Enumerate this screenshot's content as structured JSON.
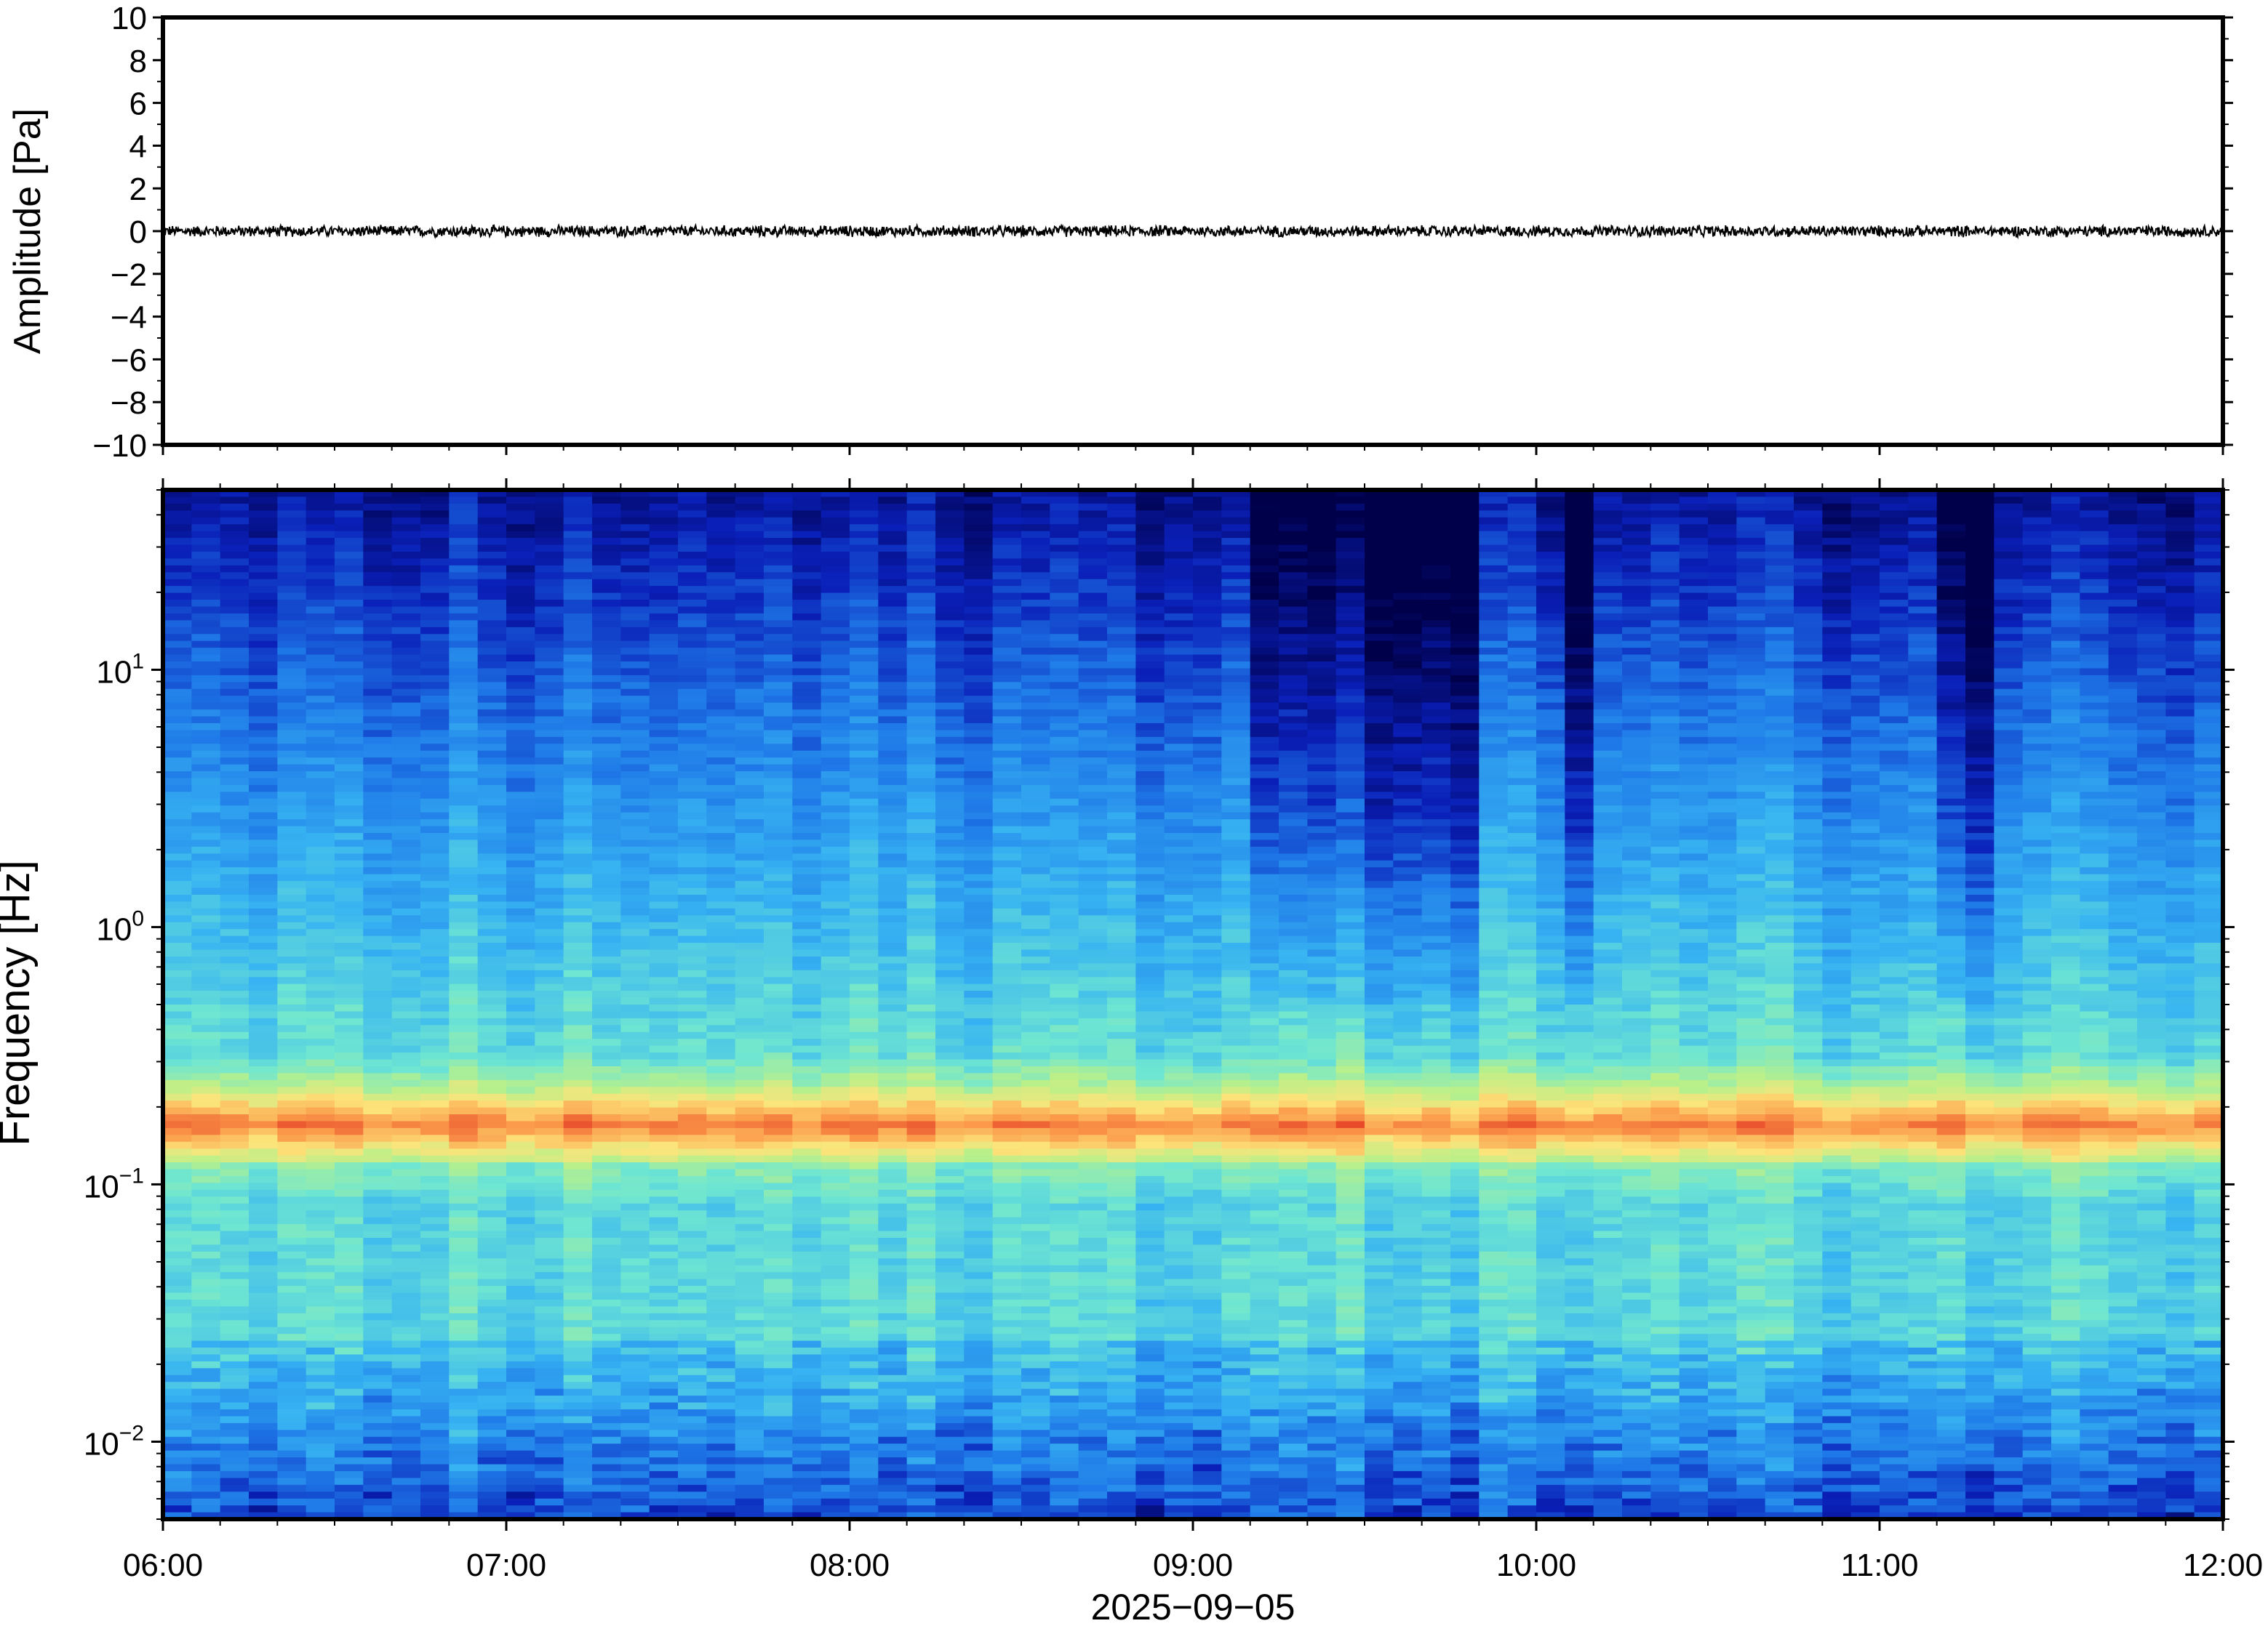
{
  "colors": {
    "frame": "#000000",
    "trace": "#000000",
    "background": "#ffffff",
    "colormap": [
      "#00004a",
      "#0a1fb8",
      "#1f7ae8",
      "#37b3f2",
      "#6ee6d2",
      "#b9f08a",
      "#fce47a",
      "#fb9a4a",
      "#e84a2a"
    ]
  },
  "chart_data": [
    {
      "type": "line",
      "panel": "waveform",
      "ylabel": "Amplitude [Pa]",
      "ylim": [
        -10,
        10
      ],
      "y_ticks": [
        "10",
        "8",
        "6",
        "4",
        "2",
        "0",
        "−2",
        "−4",
        "−6",
        "−8",
        "−10"
      ],
      "y_tick_values": [
        10,
        8,
        6,
        4,
        2,
        0,
        -2,
        -4,
        -6,
        -8,
        -10
      ],
      "xlim": [
        "2025-09-05 06:00",
        "2025-09-05 12:00"
      ],
      "series": [
        {
          "color": "#000000",
          "mean": 0,
          "approx_peak_amplitude": 0.3
        }
      ]
    },
    {
      "type": "heatmap",
      "panel": "spectrogram",
      "ylabel": "Frequency [Hz]",
      "y_scale": "log",
      "ylim": [
        0.005,
        50
      ],
      "y_ticks": [
        {
          "base": "10",
          "exp": "1",
          "value": 10
        },
        {
          "base": "10",
          "exp": "0",
          "value": 1
        },
        {
          "base": "10",
          "exp": "−1",
          "value": 0.1
        },
        {
          "base": "10",
          "exp": "−2",
          "value": 0.01
        }
      ],
      "xlim": [
        "2025-09-05 06:00",
        "2025-09-05 12:00"
      ],
      "xlabel": "2025−09−05",
      "x_ticks": [
        "06:00",
        "07:00",
        "08:00",
        "09:00",
        "10:00",
        "11:00",
        "12:00"
      ],
      "x_tick_hours": [
        6,
        7,
        8,
        9,
        10,
        11,
        12
      ],
      "time_columns": 72,
      "peak_band_hz": 0.17,
      "quiet_intervals": [
        {
          "start": "09:10",
          "end": "09:30"
        },
        {
          "start": "09:32",
          "end": "09:48"
        },
        {
          "start": "10:05",
          "end": "10:12"
        },
        {
          "start": "11:12",
          "end": "11:18"
        }
      ]
    }
  ]
}
